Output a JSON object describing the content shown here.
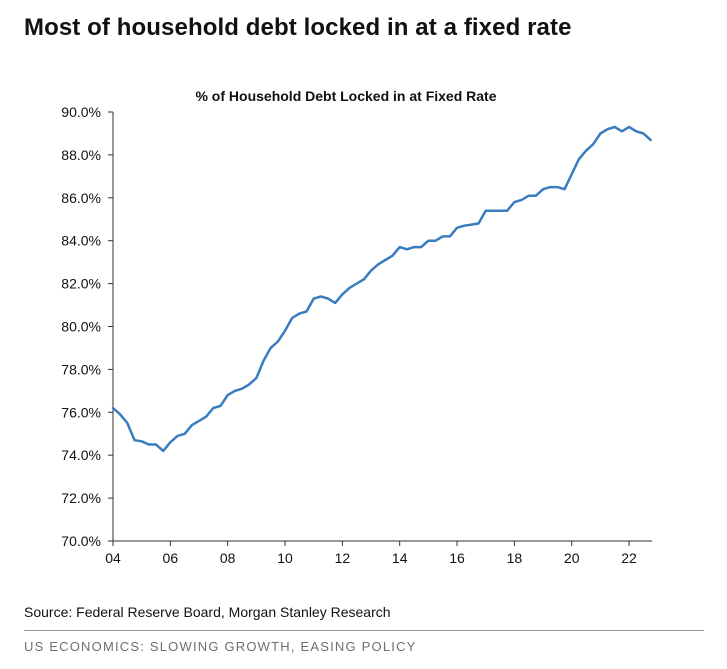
{
  "page_title": "Most of household debt locked in at a fixed rate",
  "source": "Source: Federal Reserve Board, Morgan Stanley Research",
  "footer": "US ECONOMICS: SLOWING GROWTH, EASING POLICY",
  "colors": {
    "line": "#3a7cc0",
    "axis": "#333333",
    "text": "#111111"
  },
  "chart_data": {
    "type": "line",
    "title": "% of Household Debt Locked in at Fixed Rate",
    "xlabel": "",
    "ylabel": "",
    "xlim": [
      2004,
      2022.8
    ],
    "ylim": [
      70,
      90
    ],
    "grid": false,
    "legend": "none",
    "x_ticks": [
      2004,
      2006,
      2008,
      2010,
      2012,
      2014,
      2016,
      2018,
      2020,
      2022
    ],
    "x_tick_labels": [
      "04",
      "06",
      "08",
      "10",
      "12",
      "14",
      "16",
      "18",
      "20",
      "22"
    ],
    "y_ticks": [
      70,
      72,
      74,
      76,
      78,
      80,
      82,
      84,
      86,
      88,
      90
    ],
    "y_tick_labels": [
      "70.0%",
      "72.0%",
      "74.0%",
      "76.0%",
      "78.0%",
      "80.0%",
      "82.0%",
      "84.0%",
      "86.0%",
      "88.0%",
      "90.0%"
    ],
    "series": [
      {
        "x": [
          2004.0,
          2004.25,
          2004.5,
          2004.75,
          2005.0,
          2005.25,
          2005.5,
          2005.75,
          2006.0,
          2006.25,
          2006.5,
          2006.75,
          2007.0,
          2007.25,
          2007.5,
          2007.75,
          2008.0,
          2008.25,
          2008.5,
          2008.75,
          2009.0,
          2009.25,
          2009.5,
          2009.75,
          2010.0,
          2010.25,
          2010.5,
          2010.75,
          2011.0,
          2011.25,
          2011.5,
          2011.75,
          2012.0,
          2012.25,
          2012.5,
          2012.75,
          2013.0,
          2013.25,
          2013.5,
          2013.75,
          2014.0,
          2014.25,
          2014.5,
          2014.75,
          2015.0,
          2015.25,
          2015.5,
          2015.75,
          2016.0,
          2016.25,
          2016.5,
          2016.75,
          2017.0,
          2017.25,
          2017.5,
          2017.75,
          2018.0,
          2018.25,
          2018.5,
          2018.75,
          2019.0,
          2019.25,
          2019.5,
          2019.75,
          2020.0,
          2020.25,
          2020.5,
          2020.75,
          2021.0,
          2021.25,
          2021.5,
          2021.75,
          2022.0,
          2022.25,
          2022.5,
          2022.75
        ],
        "values": [
          76.2,
          75.9,
          75.5,
          74.7,
          74.65,
          74.5,
          74.5,
          74.2,
          74.6,
          74.9,
          75.0,
          75.4,
          75.6,
          75.8,
          76.2,
          76.3,
          76.8,
          77.0,
          77.1,
          77.3,
          77.6,
          78.4,
          79.0,
          79.3,
          79.8,
          80.4,
          80.6,
          80.7,
          81.3,
          81.4,
          81.3,
          81.1,
          81.5,
          81.8,
          82.0,
          82.2,
          82.6,
          82.9,
          83.1,
          83.3,
          83.7,
          83.6,
          83.7,
          83.7,
          84.0,
          84.0,
          84.2,
          84.2,
          84.6,
          84.7,
          84.75,
          84.8,
          85.4,
          85.4,
          85.4,
          85.4,
          85.8,
          85.9,
          86.1,
          86.1,
          86.4,
          86.5,
          86.5,
          86.4,
          87.1,
          87.8,
          88.2,
          88.5,
          89.0,
          89.2,
          89.3,
          89.1,
          89.3,
          89.1,
          89.0,
          88.7
        ]
      }
    ]
  }
}
